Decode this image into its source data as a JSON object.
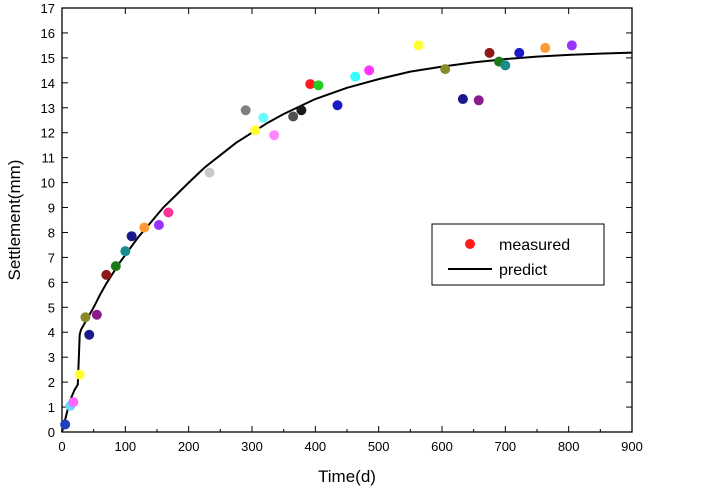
{
  "chart_data": {
    "type": "scatter",
    "title": "",
    "xlabel": "Time(d)",
    "ylabel": "Settlement(mm)",
    "xlim": [
      0,
      900
    ],
    "ylim": [
      0,
      17
    ],
    "xticks": [
      0,
      100,
      200,
      300,
      400,
      500,
      600,
      700,
      800,
      900
    ],
    "yticks": [
      0,
      1,
      2,
      3,
      4,
      5,
      6,
      7,
      8,
      9,
      10,
      11,
      12,
      13,
      14,
      15,
      16,
      17
    ],
    "legend": {
      "position": "right-middle",
      "entries": [
        {
          "label": "measured",
          "kind": "marker",
          "color": "#ff1a1a"
        },
        {
          "label": "predict",
          "kind": "line",
          "color": "#000000"
        }
      ]
    },
    "series": [
      {
        "name": "measured",
        "kind": "scatter",
        "points": [
          {
            "x": 5,
            "y": 0.3,
            "color": "#1f3fbf"
          },
          {
            "x": 13,
            "y": 1.05,
            "color": "#66d9ff"
          },
          {
            "x": 18,
            "y": 1.2,
            "color": "#ff66ff"
          },
          {
            "x": 28,
            "y": 2.3,
            "color": "#ffff33"
          },
          {
            "x": 37,
            "y": 4.6,
            "color": "#8a8a2a"
          },
          {
            "x": 43,
            "y": 3.9,
            "color": "#1a1a8c"
          },
          {
            "x": 55,
            "y": 4.7,
            "color": "#8c1a8c"
          },
          {
            "x": 70,
            "y": 6.3,
            "color": "#8c1a1a"
          },
          {
            "x": 85,
            "y": 6.65,
            "color": "#1a7a1a"
          },
          {
            "x": 100,
            "y": 7.25,
            "color": "#1a8c8c"
          },
          {
            "x": 110,
            "y": 7.85,
            "color": "#1a1a8c"
          },
          {
            "x": 130,
            "y": 8.2,
            "color": "#ff9933"
          },
          {
            "x": 153,
            "y": 8.3,
            "color": "#9933ff"
          },
          {
            "x": 168,
            "y": 8.8,
            "color": "#ff3399"
          },
          {
            "x": 233,
            "y": 10.4,
            "color": "#c8c8c8"
          },
          {
            "x": 290,
            "y": 12.9,
            "color": "#808080"
          },
          {
            "x": 305,
            "y": 12.1,
            "color": "#ffff33"
          },
          {
            "x": 318,
            "y": 12.6,
            "color": "#66ffff"
          },
          {
            "x": 335,
            "y": 11.9,
            "color": "#ff88ff"
          },
          {
            "x": 365,
            "y": 12.65,
            "color": "#505050"
          },
          {
            "x": 378,
            "y": 12.9,
            "color": "#1a1a1a"
          },
          {
            "x": 392,
            "y": 13.95,
            "color": "#ff1a1a"
          },
          {
            "x": 405,
            "y": 13.9,
            "color": "#22cc22"
          },
          {
            "x": 435,
            "y": 13.1,
            "color": "#1a1acc"
          },
          {
            "x": 463,
            "y": 14.25,
            "color": "#33ffff"
          },
          {
            "x": 485,
            "y": 14.5,
            "color": "#ff33ff"
          },
          {
            "x": 563,
            "y": 15.5,
            "color": "#ffff33"
          },
          {
            "x": 605,
            "y": 14.55,
            "color": "#8a8a2a"
          },
          {
            "x": 633,
            "y": 13.35,
            "color": "#1a1a8c"
          },
          {
            "x": 658,
            "y": 13.3,
            "color": "#8c1a8c"
          },
          {
            "x": 675,
            "y": 15.2,
            "color": "#8c1a1a"
          },
          {
            "x": 690,
            "y": 14.85,
            "color": "#1a7a1a"
          },
          {
            "x": 700,
            "y": 14.7,
            "color": "#1a8c8c"
          },
          {
            "x": 722,
            "y": 15.2,
            "color": "#1a1acc"
          },
          {
            "x": 763,
            "y": 15.4,
            "color": "#ff9933"
          },
          {
            "x": 805,
            "y": 15.5,
            "color": "#9933ff"
          }
        ]
      },
      {
        "name": "predict",
        "kind": "line",
        "color": "#000000",
        "x": [
          0,
          5,
          10,
          15,
          20,
          25,
          28,
          30,
          40,
          50,
          60,
          70,
          80,
          90,
          100,
          120,
          140,
          160,
          180,
          200,
          225,
          250,
          275,
          300,
          325,
          350,
          375,
          400,
          450,
          500,
          550,
          600,
          650,
          700,
          750,
          800,
          850,
          900
        ],
        "y": [
          0,
          0.5,
          1.0,
          1.4,
          1.7,
          1.9,
          3.9,
          4.1,
          4.55,
          5.0,
          5.5,
          5.95,
          6.35,
          6.75,
          7.1,
          7.8,
          8.4,
          9.0,
          9.5,
          10.0,
          10.6,
          11.1,
          11.6,
          12.0,
          12.4,
          12.75,
          13.05,
          13.35,
          13.8,
          14.15,
          14.45,
          14.65,
          14.82,
          14.95,
          15.05,
          15.12,
          15.17,
          15.21
        ]
      }
    ]
  }
}
